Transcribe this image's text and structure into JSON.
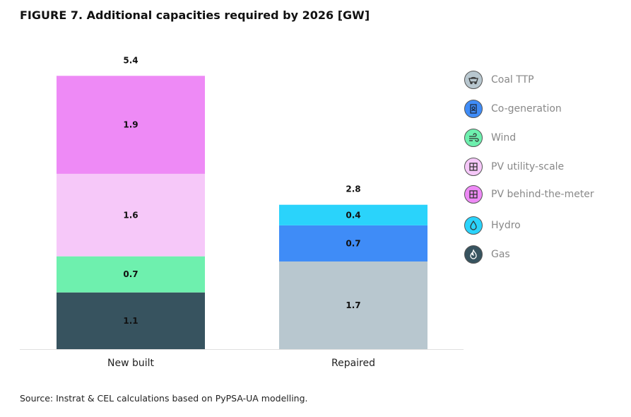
{
  "title": "FIGURE 7. Additional capacities required by 2026 [GW]",
  "source": "Source: Instrat & CEL calculations based on PyPSA-UA modelling.",
  "chart_data": {
    "type": "bar",
    "stacked": true,
    "title": "FIGURE 7. Additional capacities required by 2026 [GW]",
    "ylabel": "GW",
    "categories": [
      "New built",
      "Repaired"
    ],
    "totals": [
      "5.4",
      "2.8"
    ],
    "ylim": [
      0,
      5.4
    ],
    "series": [
      {
        "name": "Coal TTP",
        "color": "#b8c7cf",
        "values": [
          0,
          1.7
        ]
      },
      {
        "name": "Co-generation",
        "color": "#3f8cf7",
        "values": [
          0,
          0.7
        ]
      },
      {
        "name": "Wind",
        "color": "#6ef0ae",
        "values": [
          0.7,
          0
        ]
      },
      {
        "name": "PV utility-scale",
        "color": "#f6c8f9",
        "values": [
          1.6,
          0
        ]
      },
      {
        "name": "PV behind-the-meter",
        "color": "#ee8af6",
        "values": [
          1.9,
          0
        ]
      },
      {
        "name": "Hydro",
        "color": "#2ad3fb",
        "values": [
          0,
          0.4
        ]
      },
      {
        "name": "Gas",
        "color": "#37535f",
        "values": [
          1.1,
          0
        ]
      }
    ],
    "stack_order": [
      "Gas",
      "Coal TTP",
      "Wind",
      "Co-generation",
      "PV utility-scale",
      "Hydro",
      "PV behind-the-meter"
    ],
    "legend_position": "right"
  },
  "legend": [
    {
      "label": "Coal TTP",
      "color": "#b8c7cf",
      "icon": "coal-cart-icon"
    },
    {
      "label": "Co-generation",
      "color": "#3f8cf7",
      "icon": "cogeneration-icon"
    },
    {
      "label": "Wind",
      "color": "#6ef0ae",
      "icon": "wind-icon"
    },
    {
      "label": "PV utility-scale",
      "color": "#f6c8f9",
      "icon": "solar-panel-icon"
    },
    {
      "label": "PV behind-the-meter",
      "color": "#ee8af6",
      "icon": "solar-panel-icon"
    },
    {
      "label": "Hydro",
      "color": "#2ad3fb",
      "icon": "water-drop-icon"
    },
    {
      "label": "Gas",
      "color": "#37535f",
      "icon": "flame-icon"
    }
  ]
}
